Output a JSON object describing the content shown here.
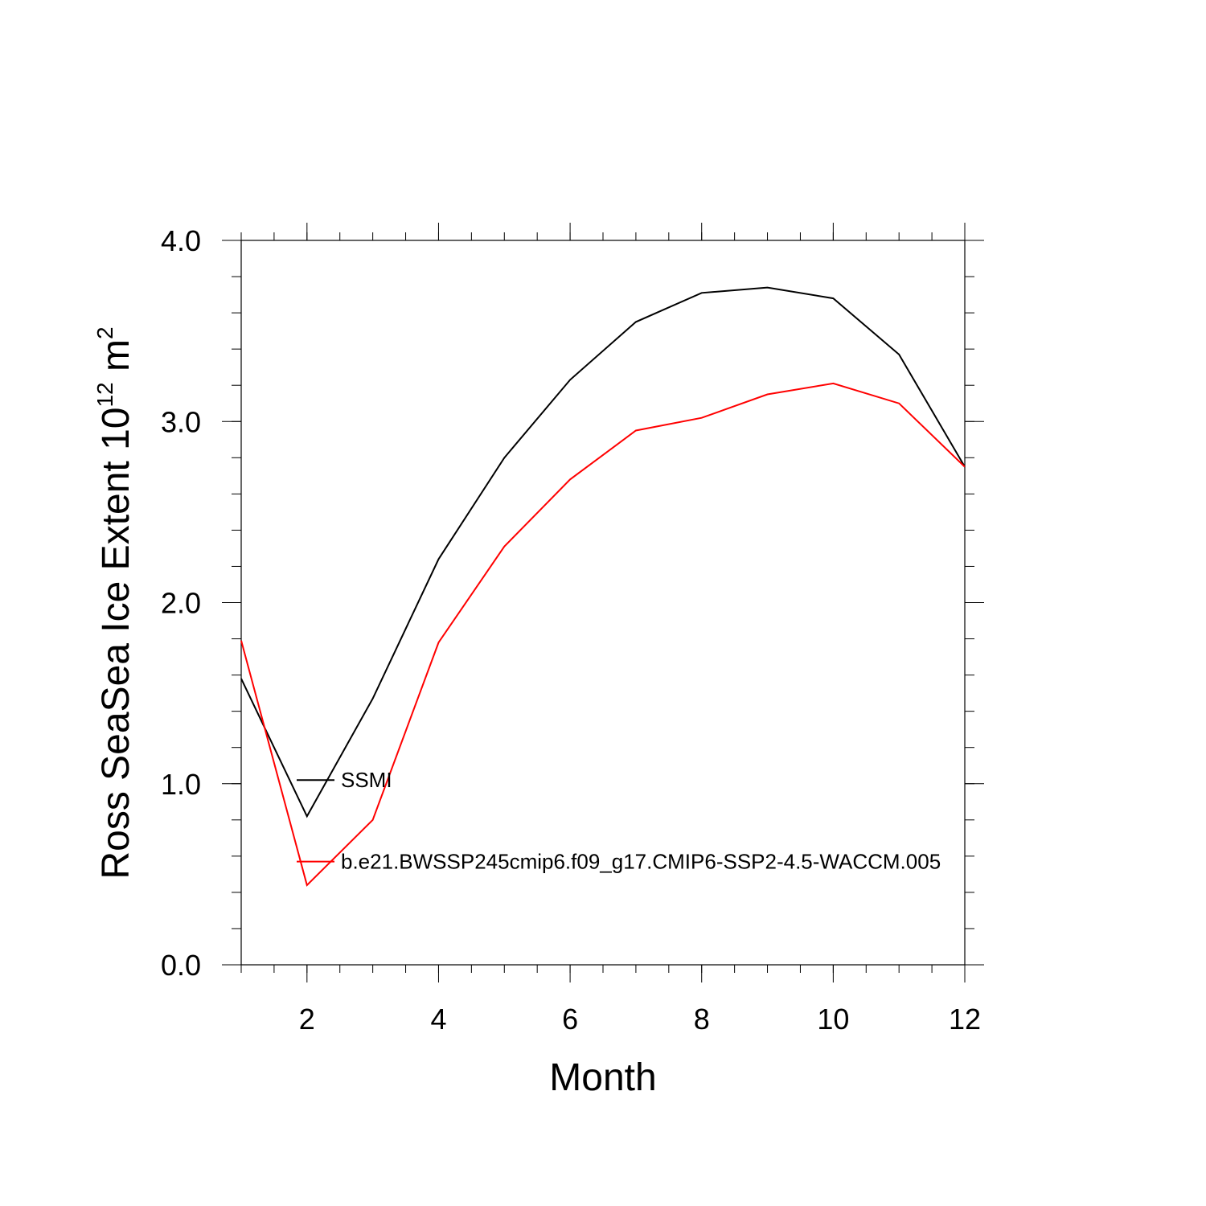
{
  "chart_data": {
    "type": "line",
    "xlabel": "Month",
    "ylabel": {
      "prefix": "Ross SeaSea Ice Extent 10",
      "exponent": "12",
      "unit": " m",
      "unit_exponent": "2"
    },
    "xlim": [
      1,
      12
    ],
    "ylim": [
      0.0,
      4.0
    ],
    "x_ticks": [
      2,
      4,
      6,
      8,
      10,
      12
    ],
    "x_tick_labels": [
      "2",
      "4",
      "6",
      "8",
      "10",
      "12"
    ],
    "y_ticks": [
      0.0,
      1.0,
      2.0,
      3.0,
      4.0
    ],
    "y_tick_labels": [
      "0.0",
      "1.0",
      "2.0",
      "3.0",
      "4.0"
    ],
    "grid": false,
    "x": [
      1,
      2,
      3,
      4,
      5,
      6,
      7,
      8,
      9,
      10,
      11,
      12
    ],
    "series": [
      {
        "name": "SSMI",
        "color": "#000000",
        "values": [
          1.58,
          0.82,
          1.47,
          2.24,
          2.8,
          3.23,
          3.55,
          3.71,
          3.74,
          3.68,
          3.37,
          2.75
        ]
      },
      {
        "name": "b.e21.BWSSP245cmip6.f09_g17.CMIP6-SSP2-4.5-WACCM.005",
        "color": "#ff0000",
        "values": [
          1.79,
          0.44,
          0.8,
          1.78,
          2.31,
          2.68,
          2.95,
          3.02,
          3.15,
          3.21,
          3.1,
          2.75
        ]
      }
    ],
    "legend": {
      "placement": "inside-left",
      "entries": [
        "SSMI",
        "b.e21.BWSSP245cmip6.f09_g17.CMIP6-SSP2-4.5-WACCM.005"
      ]
    }
  }
}
